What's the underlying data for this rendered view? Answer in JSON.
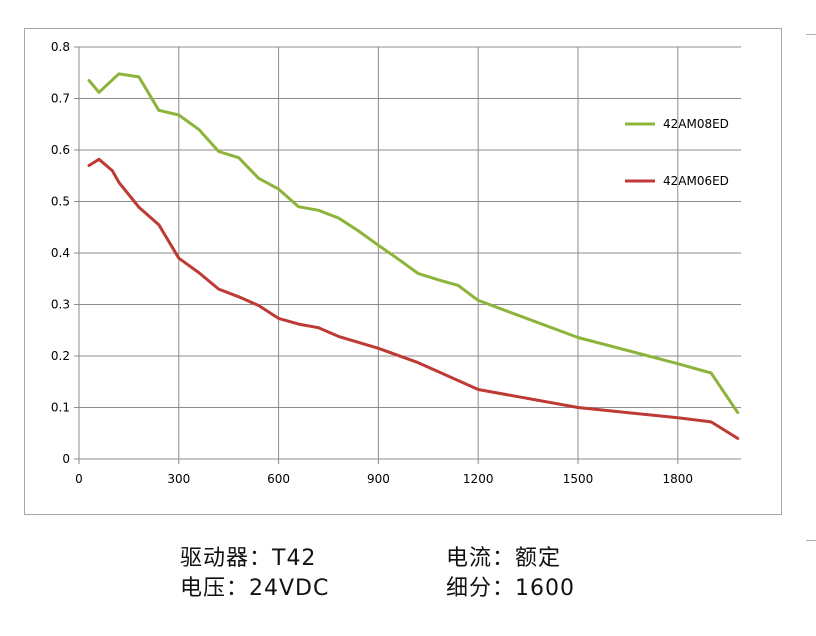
{
  "chart_data": {
    "type": "line",
    "xlim": [
      0,
      1990
    ],
    "ylim": [
      0,
      0.8
    ],
    "x_ticks": [
      0,
      300,
      600,
      900,
      1200,
      1500,
      1800
    ],
    "y_ticks": [
      0,
      0.1,
      0.2,
      0.3,
      0.4,
      0.5,
      0.6,
      0.7,
      0.8
    ],
    "x_tick_labels": [
      "0",
      "300",
      "600",
      "900",
      "1200",
      "1500",
      "1800"
    ],
    "y_tick_labels": [
      "0",
      "0.1",
      "0.2",
      "0.3",
      "0.4",
      "0.5",
      "0.6",
      "0.7",
      "0.8"
    ],
    "grid": true,
    "legend_position": "right",
    "series": [
      {
        "name": "42AM08ED",
        "color": "#8db43a",
        "x": [
          30,
          60,
          120,
          180,
          240,
          300,
          360,
          420,
          480,
          540,
          600,
          660,
          720,
          780,
          840,
          900,
          960,
          1020,
          1080,
          1140,
          1200,
          1500,
          1800,
          1900,
          1980
        ],
        "y": [
          0.735,
          0.712,
          0.748,
          0.742,
          0.677,
          0.668,
          0.64,
          0.597,
          0.585,
          0.545,
          0.524,
          0.49,
          0.483,
          0.468,
          0.443,
          0.415,
          0.388,
          0.36,
          0.348,
          0.337,
          0.308,
          0.236,
          0.185,
          0.167,
          0.09
        ]
      },
      {
        "name": "42AM06ED",
        "color": "#be3a34",
        "x": [
          30,
          60,
          100,
          120,
          180,
          240,
          300,
          360,
          420,
          480,
          540,
          600,
          660,
          720,
          780,
          900,
          1020,
          1200,
          1500,
          1800,
          1900,
          1980
        ],
        "y": [
          0.57,
          0.582,
          0.56,
          0.537,
          0.489,
          0.455,
          0.39,
          0.362,
          0.33,
          0.315,
          0.298,
          0.273,
          0.262,
          0.255,
          0.238,
          0.215,
          0.187,
          0.135,
          0.1,
          0.08,
          0.072,
          0.04
        ]
      }
    ]
  },
  "specs": {
    "driver": "驱动器：T42",
    "current": "电流：额定",
    "voltage": "电压：24VDC",
    "microstep": "细分：1600"
  }
}
